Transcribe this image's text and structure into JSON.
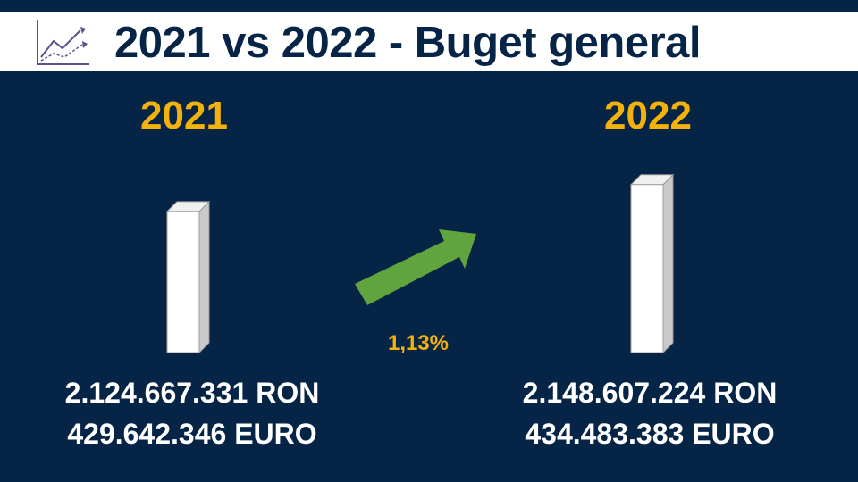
{
  "header": {
    "title": "2021 vs 2022 - Buget general",
    "icon": "line-chart-icon"
  },
  "colors": {
    "background": "#062446",
    "accent": "#f3b20b",
    "arrow": "#5fa43c",
    "bar": "#ffffff"
  },
  "chart_data": {
    "type": "bar",
    "title": "2021 vs 2022 - Buget general",
    "categories": [
      "2021",
      "2022"
    ],
    "series": [
      {
        "values": [
          2124667331,
          2148607224
        ]
      }
    ],
    "value_labels": [
      {
        "ron": "2.124.667.331 RON",
        "euro": "429.642.346 EURO"
      },
      {
        "ron": "2.148.607.224 RON",
        "euro": "434.483.383 EURO"
      }
    ],
    "change_label": "1,13%",
    "trend": "up"
  }
}
